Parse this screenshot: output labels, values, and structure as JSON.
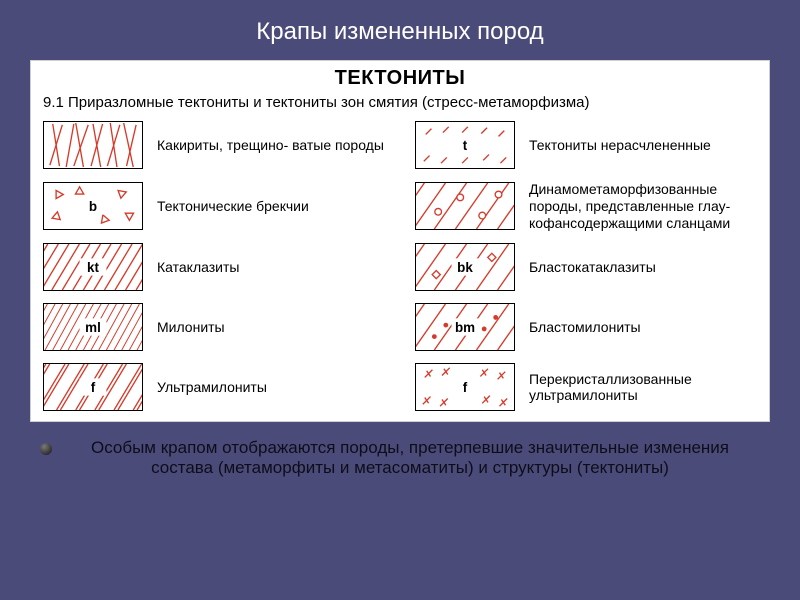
{
  "colors": {
    "slide_bg": "#4b4b7a",
    "title_color": "#ffffff",
    "panel_bg": "#ffffff",
    "panel_text": "#000000",
    "symbol_red": "#d63a2a",
    "footer_text": "#0d0d1a",
    "swatch_border": "#000000"
  },
  "layout": {
    "swatch_w": 100,
    "swatch_h": 48,
    "stroke_width": 1.4
  },
  "title": "Крапы измененных пород",
  "panel": {
    "heading": "ТЕКТОНИТЫ",
    "subheading": "9.1 Приразломные тектониты и тектониты зон смятия (стресс-метаморфизма)"
  },
  "legend": {
    "left": [
      {
        "id": "kakirity",
        "letter": "",
        "label": "Какириты, трещино-\nватые породы",
        "pattern": "random_lines"
      },
      {
        "id": "brekchii",
        "letter": "b",
        "label": "Тектонические\nбрекчии",
        "pattern": "triangles"
      },
      {
        "id": "kataklazity",
        "letter": "kt",
        "label": "Катаклазиты",
        "pattern": "diag_lines_labeled"
      },
      {
        "id": "milonity",
        "letter": "ml",
        "label": "Милониты",
        "pattern": "diag_lines_thin"
      },
      {
        "id": "ultramilonity",
        "letter": "f",
        "label": "Ультрамилониты",
        "pattern": "diag_double"
      }
    ],
    "right": [
      {
        "id": "tektonity_n",
        "letter": "t",
        "label": "Тектониты нерасчлененные",
        "pattern": "sparse_ticks"
      },
      {
        "id": "dinamo",
        "letter": "",
        "label": "Динамометаморфизованные породы, представленные глау-кофансодержащими сланцами",
        "pattern": "diag_circles"
      },
      {
        "id": "blastokata",
        "letter": "bk",
        "label": "Бластокатаклазиты",
        "pattern": "diag_rhomb"
      },
      {
        "id": "blastomilo",
        "letter": "bm",
        "label": "Бластомилониты",
        "pattern": "diag_dot_chain"
      },
      {
        "id": "perekrist",
        "letter": "f",
        "label": "Перекристаллизованные ультрамилониты",
        "pattern": "short_crosses"
      }
    ]
  },
  "footer": "Особым крапом отображаются породы, претерпевшие значительные изменения состава (метаморфиты и метасоматиты) и структуры (тектониты)"
}
